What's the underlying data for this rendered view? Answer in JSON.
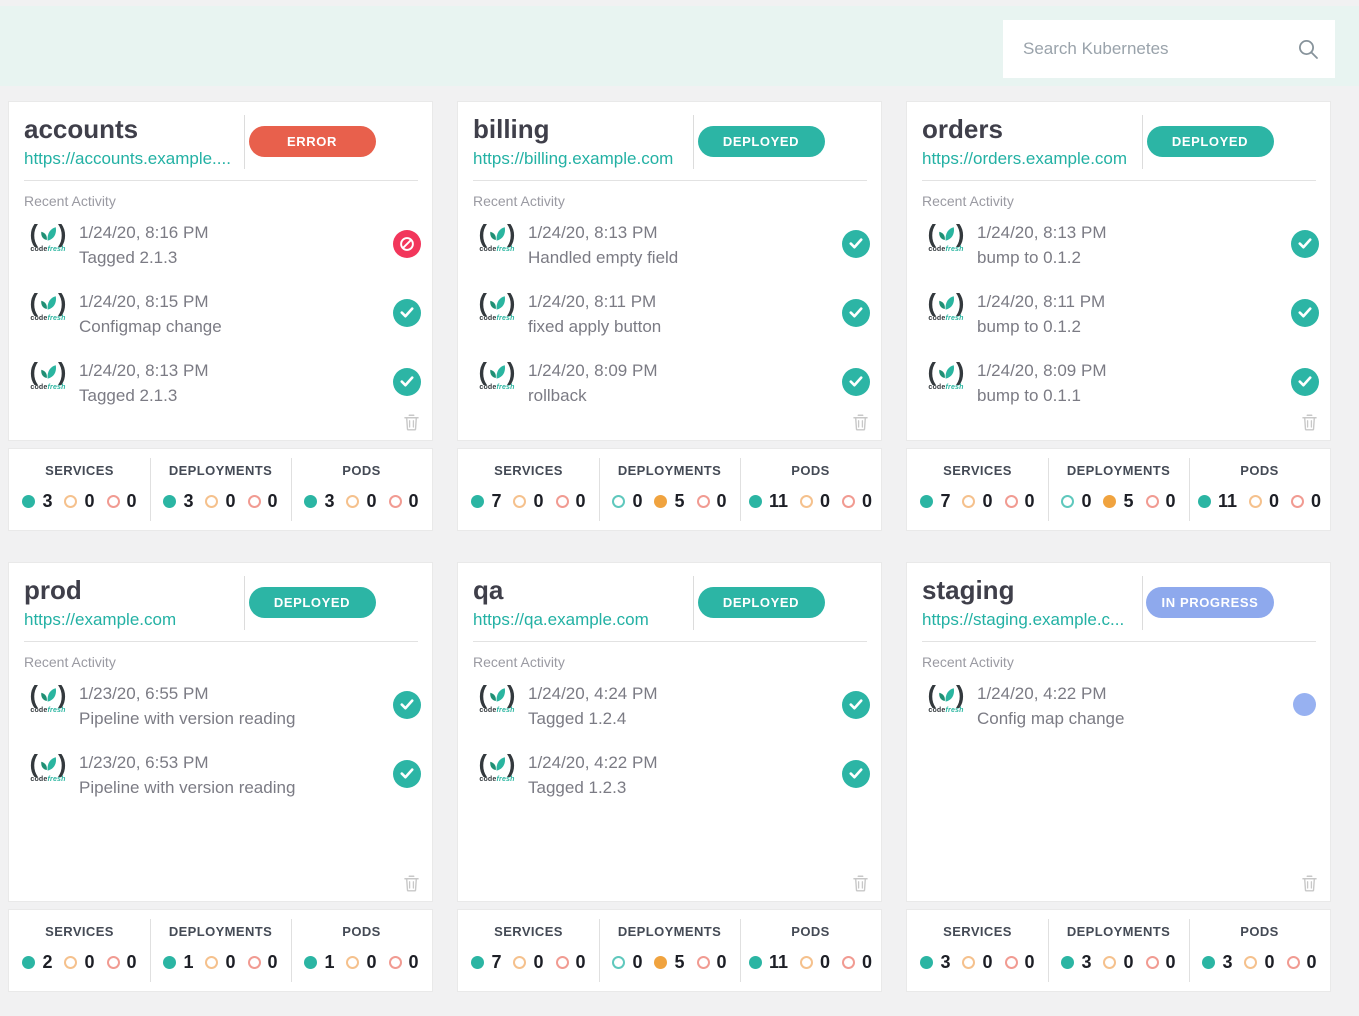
{
  "search": {
    "placeholder": "Search Kubernetes"
  },
  "logo": {
    "paren_open": "(",
    "paren_close": ")",
    "code": "code",
    "fresh": "fresh"
  },
  "card_labels": {
    "recent_activity": "Recent Activity"
  },
  "stat_columns": [
    "SERVICES",
    "DEPLOYMENTS",
    "PODS"
  ],
  "colors": {
    "deployed": "#2cb5a5",
    "error": "#e8604c",
    "in_progress": "#8ea9ed",
    "success_icon": "#2cb5a5",
    "error_icon": "#f2365b",
    "progress_icon": "#97b1f1",
    "link": "#23b1a4",
    "dot_teal": "#2bb5a3",
    "dot_orange": "#f0a33f",
    "dot_red": "#ed5f52"
  },
  "environments": [
    {
      "name": "accounts",
      "url": "https://accounts.example....",
      "status": {
        "label": "ERROR",
        "type": "error"
      },
      "activities": [
        {
          "time": "1/24/20, 8:16 PM",
          "desc": "Tagged 2.1.3",
          "result": "error"
        },
        {
          "time": "1/24/20, 8:15 PM",
          "desc": "Configmap change",
          "result": "success"
        },
        {
          "time": "1/24/20, 8:13 PM",
          "desc": "Tagged 2.1.3",
          "result": "success"
        }
      ],
      "stats": [
        [
          3,
          0,
          0
        ],
        [
          3,
          0,
          0
        ],
        [
          3,
          0,
          0
        ]
      ]
    },
    {
      "name": "billing",
      "url": "https://billing.example.com",
      "status": {
        "label": "DEPLOYED",
        "type": "deployed"
      },
      "activities": [
        {
          "time": "1/24/20, 8:13 PM",
          "desc": "Handled empty field",
          "result": "success"
        },
        {
          "time": "1/24/20, 8:11 PM",
          "desc": "fixed apply button",
          "result": "success"
        },
        {
          "time": "1/24/20, 8:09 PM",
          "desc": "rollback",
          "result": "success"
        }
      ],
      "stats": [
        [
          7,
          0,
          0
        ],
        [
          0,
          5,
          0
        ],
        [
          11,
          0,
          0
        ]
      ]
    },
    {
      "name": "orders",
      "url": "https://orders.example.com",
      "status": {
        "label": "DEPLOYED",
        "type": "deployed"
      },
      "activities": [
        {
          "time": "1/24/20, 8:13 PM",
          "desc": "bump to 0.1.2",
          "result": "success"
        },
        {
          "time": "1/24/20, 8:11 PM",
          "desc": "bump to 0.1.2",
          "result": "success"
        },
        {
          "time": "1/24/20, 8:09 PM",
          "desc": "bump to 0.1.1",
          "result": "success"
        }
      ],
      "stats": [
        [
          7,
          0,
          0
        ],
        [
          0,
          5,
          0
        ],
        [
          11,
          0,
          0
        ]
      ]
    },
    {
      "name": "prod",
      "url": "https://example.com",
      "status": {
        "label": "DEPLOYED",
        "type": "deployed"
      },
      "activities": [
        {
          "time": "1/23/20, 6:55 PM",
          "desc": "Pipeline with version reading",
          "result": "success"
        },
        {
          "time": "1/23/20, 6:53 PM",
          "desc": "Pipeline with version reading",
          "result": "success"
        }
      ],
      "stats": [
        [
          2,
          0,
          0
        ],
        [
          1,
          0,
          0
        ],
        [
          1,
          0,
          0
        ]
      ]
    },
    {
      "name": "qa",
      "url": "https://qa.example.com",
      "status": {
        "label": "DEPLOYED",
        "type": "deployed"
      },
      "activities": [
        {
          "time": "1/24/20, 4:24 PM",
          "desc": "Tagged 1.2.4",
          "result": "success"
        },
        {
          "time": "1/24/20, 4:22 PM",
          "desc": "Tagged 1.2.3",
          "result": "success"
        }
      ],
      "stats": [
        [
          7,
          0,
          0
        ],
        [
          0,
          5,
          0
        ],
        [
          11,
          0,
          0
        ]
      ]
    },
    {
      "name": "staging",
      "url": "https://staging.example.c...",
      "status": {
        "label": "IN PROGRESS",
        "type": "in_progress"
      },
      "activities": [
        {
          "time": "1/24/20, 4:22 PM",
          "desc": "Config map change",
          "result": "progress"
        }
      ],
      "stats": [
        [
          3,
          0,
          0
        ],
        [
          3,
          0,
          0
        ],
        [
          3,
          0,
          0
        ]
      ]
    }
  ]
}
